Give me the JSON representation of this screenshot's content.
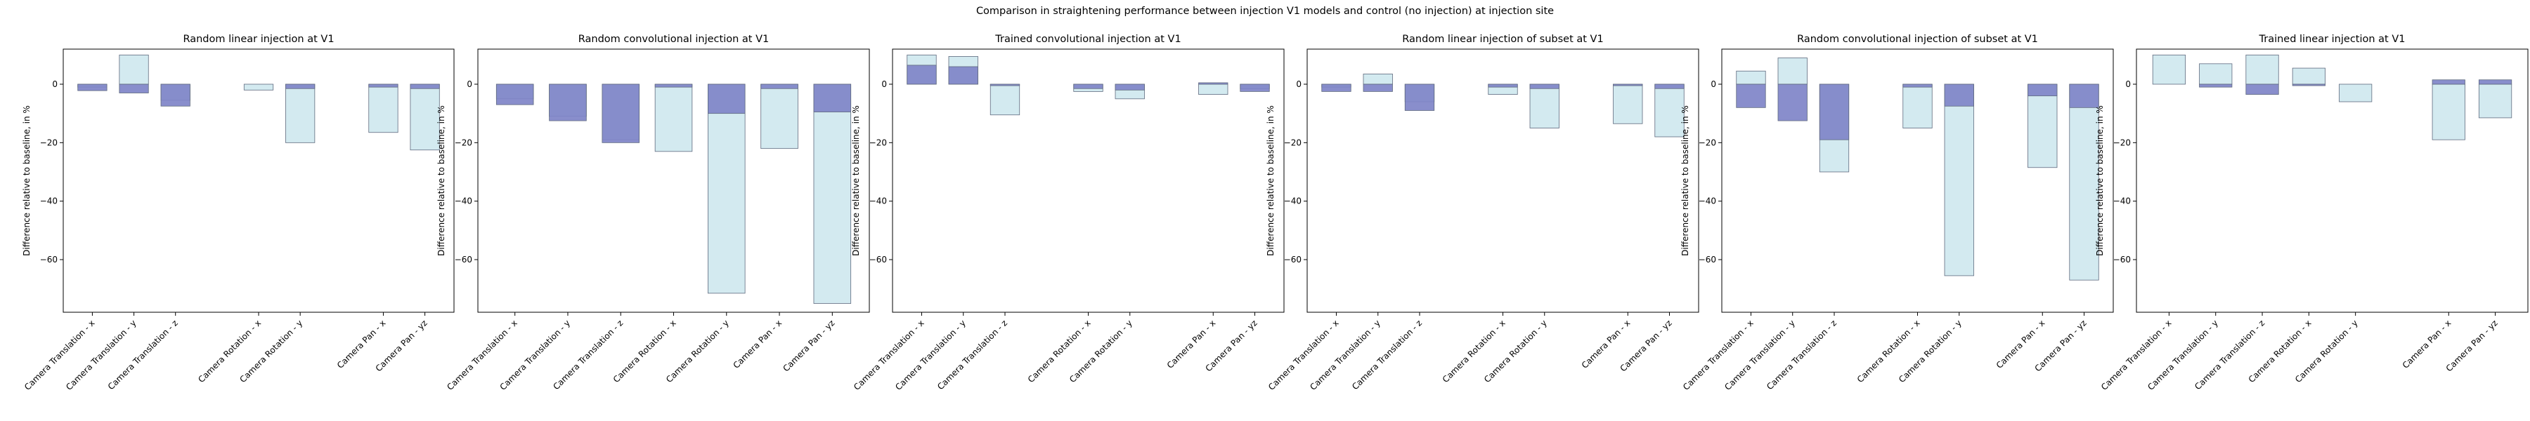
{
  "suptitle": "Comparison in straightening performance between injection V1 models and control (no injection) at injection site",
  "chart_data": [
    {
      "type": "bar",
      "title": "Random linear injection at V1",
      "ylabel": "Difference relative to baseline, in %",
      "ylim": [
        -78,
        12
      ],
      "yticks": [
        0,
        -20,
        -40,
        -60
      ],
      "categories": [
        "Camera Translation - x",
        "Camera Translation - y",
        "Camera Translation - z",
        "Camera Rotation - x",
        "Camera Rotation - y",
        "Camera Pan - x",
        "Camera Pan - yz"
      ],
      "x": [
        0,
        1,
        2,
        4,
        5,
        7,
        8
      ],
      "series": [
        {
          "values": [
            -2.2,
            -3.0,
            -7.5,
            null,
            -1.5,
            -1.0,
            -1.5
          ],
          "color": "#7f84c8"
        },
        {
          "values": [
            -1.0,
            10.0,
            -5.5,
            -2.0,
            -20.0,
            -16.5,
            -22.5
          ],
          "color": "#d3eaf0"
        }
      ]
    },
    {
      "type": "bar",
      "title": "Random convolutional injection at V1",
      "ylabel": "Difference relative to baseline, in %",
      "ylim": [
        -78,
        12
      ],
      "yticks": [
        0,
        -20,
        -40,
        -60
      ],
      "categories": [
        "Camera Translation - x",
        "Camera Translation - y",
        "Camera Translation - z",
        "Camera Rotation - x",
        "Camera Rotation - y",
        "Camera Pan - x",
        "Camera Pan - yz"
      ],
      "x": [
        0,
        1,
        2,
        3,
        4,
        5,
        6
      ],
      "series": [
        {
          "values": [
            -7.0,
            -12.5,
            -20.0,
            -1.0,
            -10.0,
            -1.5,
            -9.5
          ],
          "color": "#7f84c8"
        },
        {
          "values": [
            -5.0,
            -11.0,
            -19.0,
            -23.0,
            -71.5,
            -22.0,
            -75.0
          ],
          "color": "#d3eaf0"
        }
      ]
    },
    {
      "type": "bar",
      "title": "Trained convolutional injection at V1",
      "ylabel": "Difference relative to baseline, in %",
      "ylim": [
        -78,
        12
      ],
      "yticks": [
        0,
        -20,
        -40,
        -60
      ],
      "categories": [
        "Camera Translation - x",
        "Camera Translation - y",
        "Camera Translation - z",
        "Camera Rotation - x",
        "Camera Rotation - y",
        "Camera Pan - x",
        "Camera Pan - yz"
      ],
      "x": [
        0,
        1,
        2,
        4,
        5,
        7,
        8
      ],
      "series": [
        {
          "values": [
            6.5,
            6.0,
            -0.5,
            -1.5,
            -2.0,
            0.5,
            -2.5
          ],
          "color": "#7f84c8"
        },
        {
          "values": [
            10.0,
            9.5,
            -10.5,
            -2.5,
            -5.0,
            -3.5,
            -1.5
          ],
          "color": "#d3eaf0"
        }
      ]
    },
    {
      "type": "bar",
      "title": "Random linear injection of subset at V1",
      "ylabel": "Difference relative to baseline, in %",
      "ylim": [
        -78,
        12
      ],
      "yticks": [
        0,
        -20,
        -40,
        -60
      ],
      "categories": [
        "Camera Translation - x",
        "Camera Translation - y",
        "Camera Translation - z",
        "Camera Rotation - x",
        "Camera Rotation - y",
        "Camera Pan - x",
        "Camera Pan - yz"
      ],
      "x": [
        0,
        1,
        2,
        4,
        5,
        7,
        8
      ],
      "series": [
        {
          "values": [
            -2.5,
            -2.5,
            -9.0,
            -1.0,
            -1.5,
            -0.5,
            -1.5
          ],
          "color": "#7f84c8"
        },
        {
          "values": [
            -1.0,
            3.5,
            -6.0,
            -3.5,
            -15.0,
            -13.5,
            -18.0
          ],
          "color": "#d3eaf0"
        }
      ]
    },
    {
      "type": "bar",
      "title": "Random convolutional injection of subset at V1",
      "ylabel": "Difference relative to baseline, in %",
      "ylim": [
        -78,
        12
      ],
      "yticks": [
        0,
        -20,
        -40,
        -60
      ],
      "categories": [
        "Camera Translation - x",
        "Camera Translation - y",
        "Camera Translation - z",
        "Camera Rotation - x",
        "Camera Rotation - y",
        "Camera Pan - x",
        "Camera Pan - yz"
      ],
      "x": [
        0,
        1,
        2,
        4,
        5,
        7,
        8
      ],
      "series": [
        {
          "values": [
            -8.0,
            -12.5,
            -19.0,
            -1.0,
            -7.5,
            -4.0,
            -8.0
          ],
          "color": "#7f84c8"
        },
        {
          "values": [
            4.5,
            9.0,
            -30.0,
            -15.0,
            -65.5,
            -28.5,
            -67.0
          ],
          "color": "#d3eaf0"
        }
      ]
    },
    {
      "type": "bar",
      "title": "Trained linear injection at V1",
      "ylabel": "Difference relative to baseline, in %",
      "ylim": [
        -78,
        12
      ],
      "yticks": [
        0,
        -20,
        -40,
        -60
      ],
      "categories": [
        "Camera Translation - x",
        "Camera Translation - y",
        "Camera Translation - z",
        "Camera Rotation - x",
        "Camera Rotation - y",
        "Camera Pan - x",
        "Camera Pan - yz"
      ],
      "x": [
        0,
        1,
        2,
        3,
        4,
        6,
        7
      ],
      "series": [
        {
          "values": [
            null,
            -1.0,
            -3.5,
            -0.5,
            null,
            1.5,
            1.5
          ],
          "color": "#7f84c8"
        },
        {
          "values": [
            10.0,
            7.0,
            10.0,
            5.5,
            -6.0,
            -19.0,
            -11.5
          ],
          "color": "#d3eaf0"
        }
      ]
    }
  ]
}
